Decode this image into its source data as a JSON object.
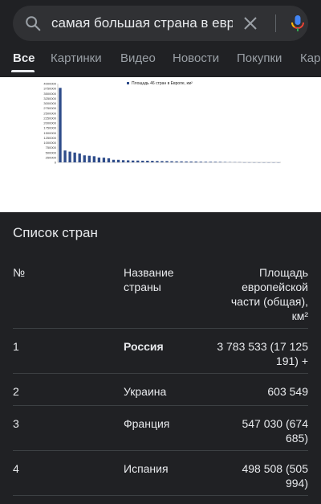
{
  "search": {
    "query": "самая большая страна в европе"
  },
  "tabs": [
    {
      "label": "Все",
      "active": true
    },
    {
      "label": "Картинки"
    },
    {
      "label": "Видео"
    },
    {
      "label": "Новости"
    },
    {
      "label": "Покупки"
    },
    {
      "label": "Кар"
    }
  ],
  "chart_data": {
    "type": "bar",
    "title": "",
    "legend": "Площадь 46 стран в Европе, км²",
    "legend_color": "#2e4c8a",
    "ylim": [
      0,
      4000000
    ],
    "y_ticks": [
      "4000000",
      "3750000",
      "3500000",
      "3250000",
      "3000000",
      "2750000",
      "2500000",
      "2250000",
      "2000000",
      "1750000",
      "1500000",
      "1250000",
      "1000000",
      "750000",
      "500000",
      "250000",
      "0"
    ],
    "values": [
      3783533,
      603549,
      547030,
      498508,
      450295,
      357022,
      338145,
      312685,
      243610,
      238391,
      207600,
      131957,
      130279,
      110879,
      103000,
      93028,
      92212,
      84871,
      83858,
      78866,
      70273,
      65300,
      64589,
      56594,
      51197,
      49035,
      45339,
      43094,
      41543,
      33846,
      30528,
      29743,
      28748,
      25713,
      20273,
      13812,
      10887,
      9251,
      2586,
      2512,
      1590,
      468,
      316,
      160,
      61,
      2
    ]
  },
  "list": {
    "title": "Список стран",
    "headers": {
      "num": "№",
      "name": [
        "Название",
        "страны"
      ],
      "area": [
        "Площадь",
        "европейской",
        "части (общая),",
        "км²"
      ]
    },
    "rows": [
      {
        "num": "1",
        "name": "Россия",
        "area": [
          "3 783 533 (17 125",
          "191) +"
        ],
        "bold": true
      },
      {
        "num": "2",
        "name": "Украина",
        "area": [
          "603 549"
        ]
      },
      {
        "num": "3",
        "name": "Франция",
        "area": [
          "547 030 (674",
          "685)"
        ]
      },
      {
        "num": "4",
        "name": "Испания",
        "area": [
          "498 508 (505",
          "994)"
        ]
      }
    ]
  }
}
